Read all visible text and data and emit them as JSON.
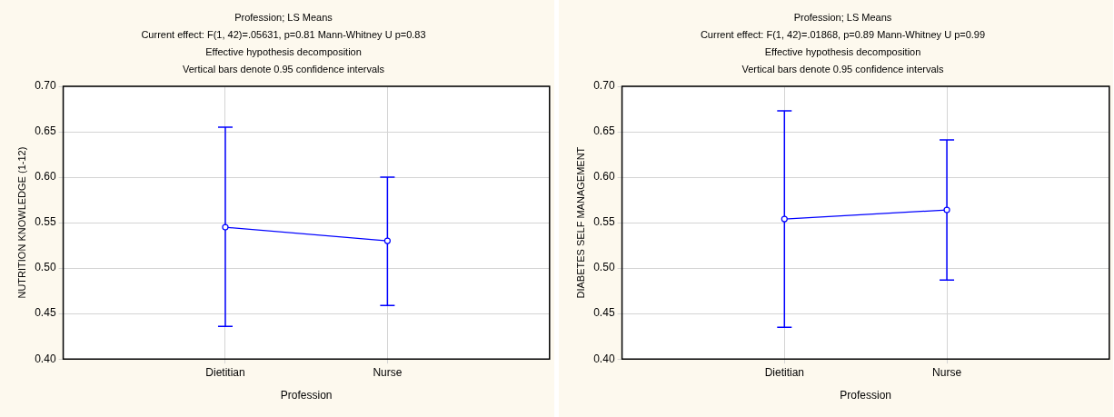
{
  "chart_data": [
    {
      "type": "line",
      "title": "Profession; LS Means",
      "subtitle": "Current effect: F(1, 42)=.05631, p=0.81 Mann-Whitney U p=0.83",
      "annotations": [
        "Effective hypothesis decomposition",
        "Vertical bars denote 0.95 confidence intervals"
      ],
      "xlabel": "Profession",
      "ylabel": "NUTRITION KNOWLEDGE (1-12)",
      "categories": [
        "Dietitian",
        "Nurse"
      ],
      "series": [
        {
          "color": "#0000ff",
          "values": [
            0.545,
            0.53
          ],
          "errors": [
            [
              0.436,
              0.655
            ],
            [
              0.459,
              0.6
            ]
          ]
        }
      ],
      "ylim": [
        0.4,
        0.7
      ],
      "yticks": [
        {
          "value": 0.4,
          "label": "0.40"
        },
        {
          "value": 0.45,
          "label": "0.45"
        },
        {
          "value": 0.5,
          "label": "0.50"
        },
        {
          "value": 0.55,
          "label": "0.55"
        },
        {
          "value": 0.6,
          "label": "0.60"
        },
        {
          "value": 0.65,
          "label": "0.65"
        },
        {
          "value": 0.7,
          "label": "0.70"
        }
      ],
      "grid": true,
      "legend": false,
      "marker": "circle",
      "line_style": "solid"
    },
    {
      "type": "line",
      "title": "Profession; LS Means",
      "subtitle": "Current effect: F(1, 42)=.01868, p=0.89 Mann-Whitney U p=0.99",
      "annotations": [
        "Effective hypothesis decomposition",
        "Vertical bars denote 0.95 confidence intervals"
      ],
      "xlabel": "Profession",
      "ylabel": "DIABETES SELF MANAGEMENT",
      "categories": [
        "Dietitian",
        "Nurse"
      ],
      "series": [
        {
          "color": "#0000ff",
          "values": [
            0.554,
            0.564
          ],
          "errors": [
            [
              0.435,
              0.673
            ],
            [
              0.487,
              0.641
            ]
          ]
        }
      ],
      "ylim": [
        0.4,
        0.7
      ],
      "yticks": [
        {
          "value": 0.4,
          "label": "0.40"
        },
        {
          "value": 0.45,
          "label": "0.45"
        },
        {
          "value": 0.5,
          "label": "0.50"
        },
        {
          "value": 0.55,
          "label": "0.55"
        },
        {
          "value": 0.6,
          "label": "0.60"
        },
        {
          "value": 0.65,
          "label": "0.65"
        },
        {
          "value": 0.7,
          "label": "0.70"
        }
      ],
      "grid": true,
      "legend": false,
      "marker": "circle",
      "line_style": "solid"
    }
  ]
}
